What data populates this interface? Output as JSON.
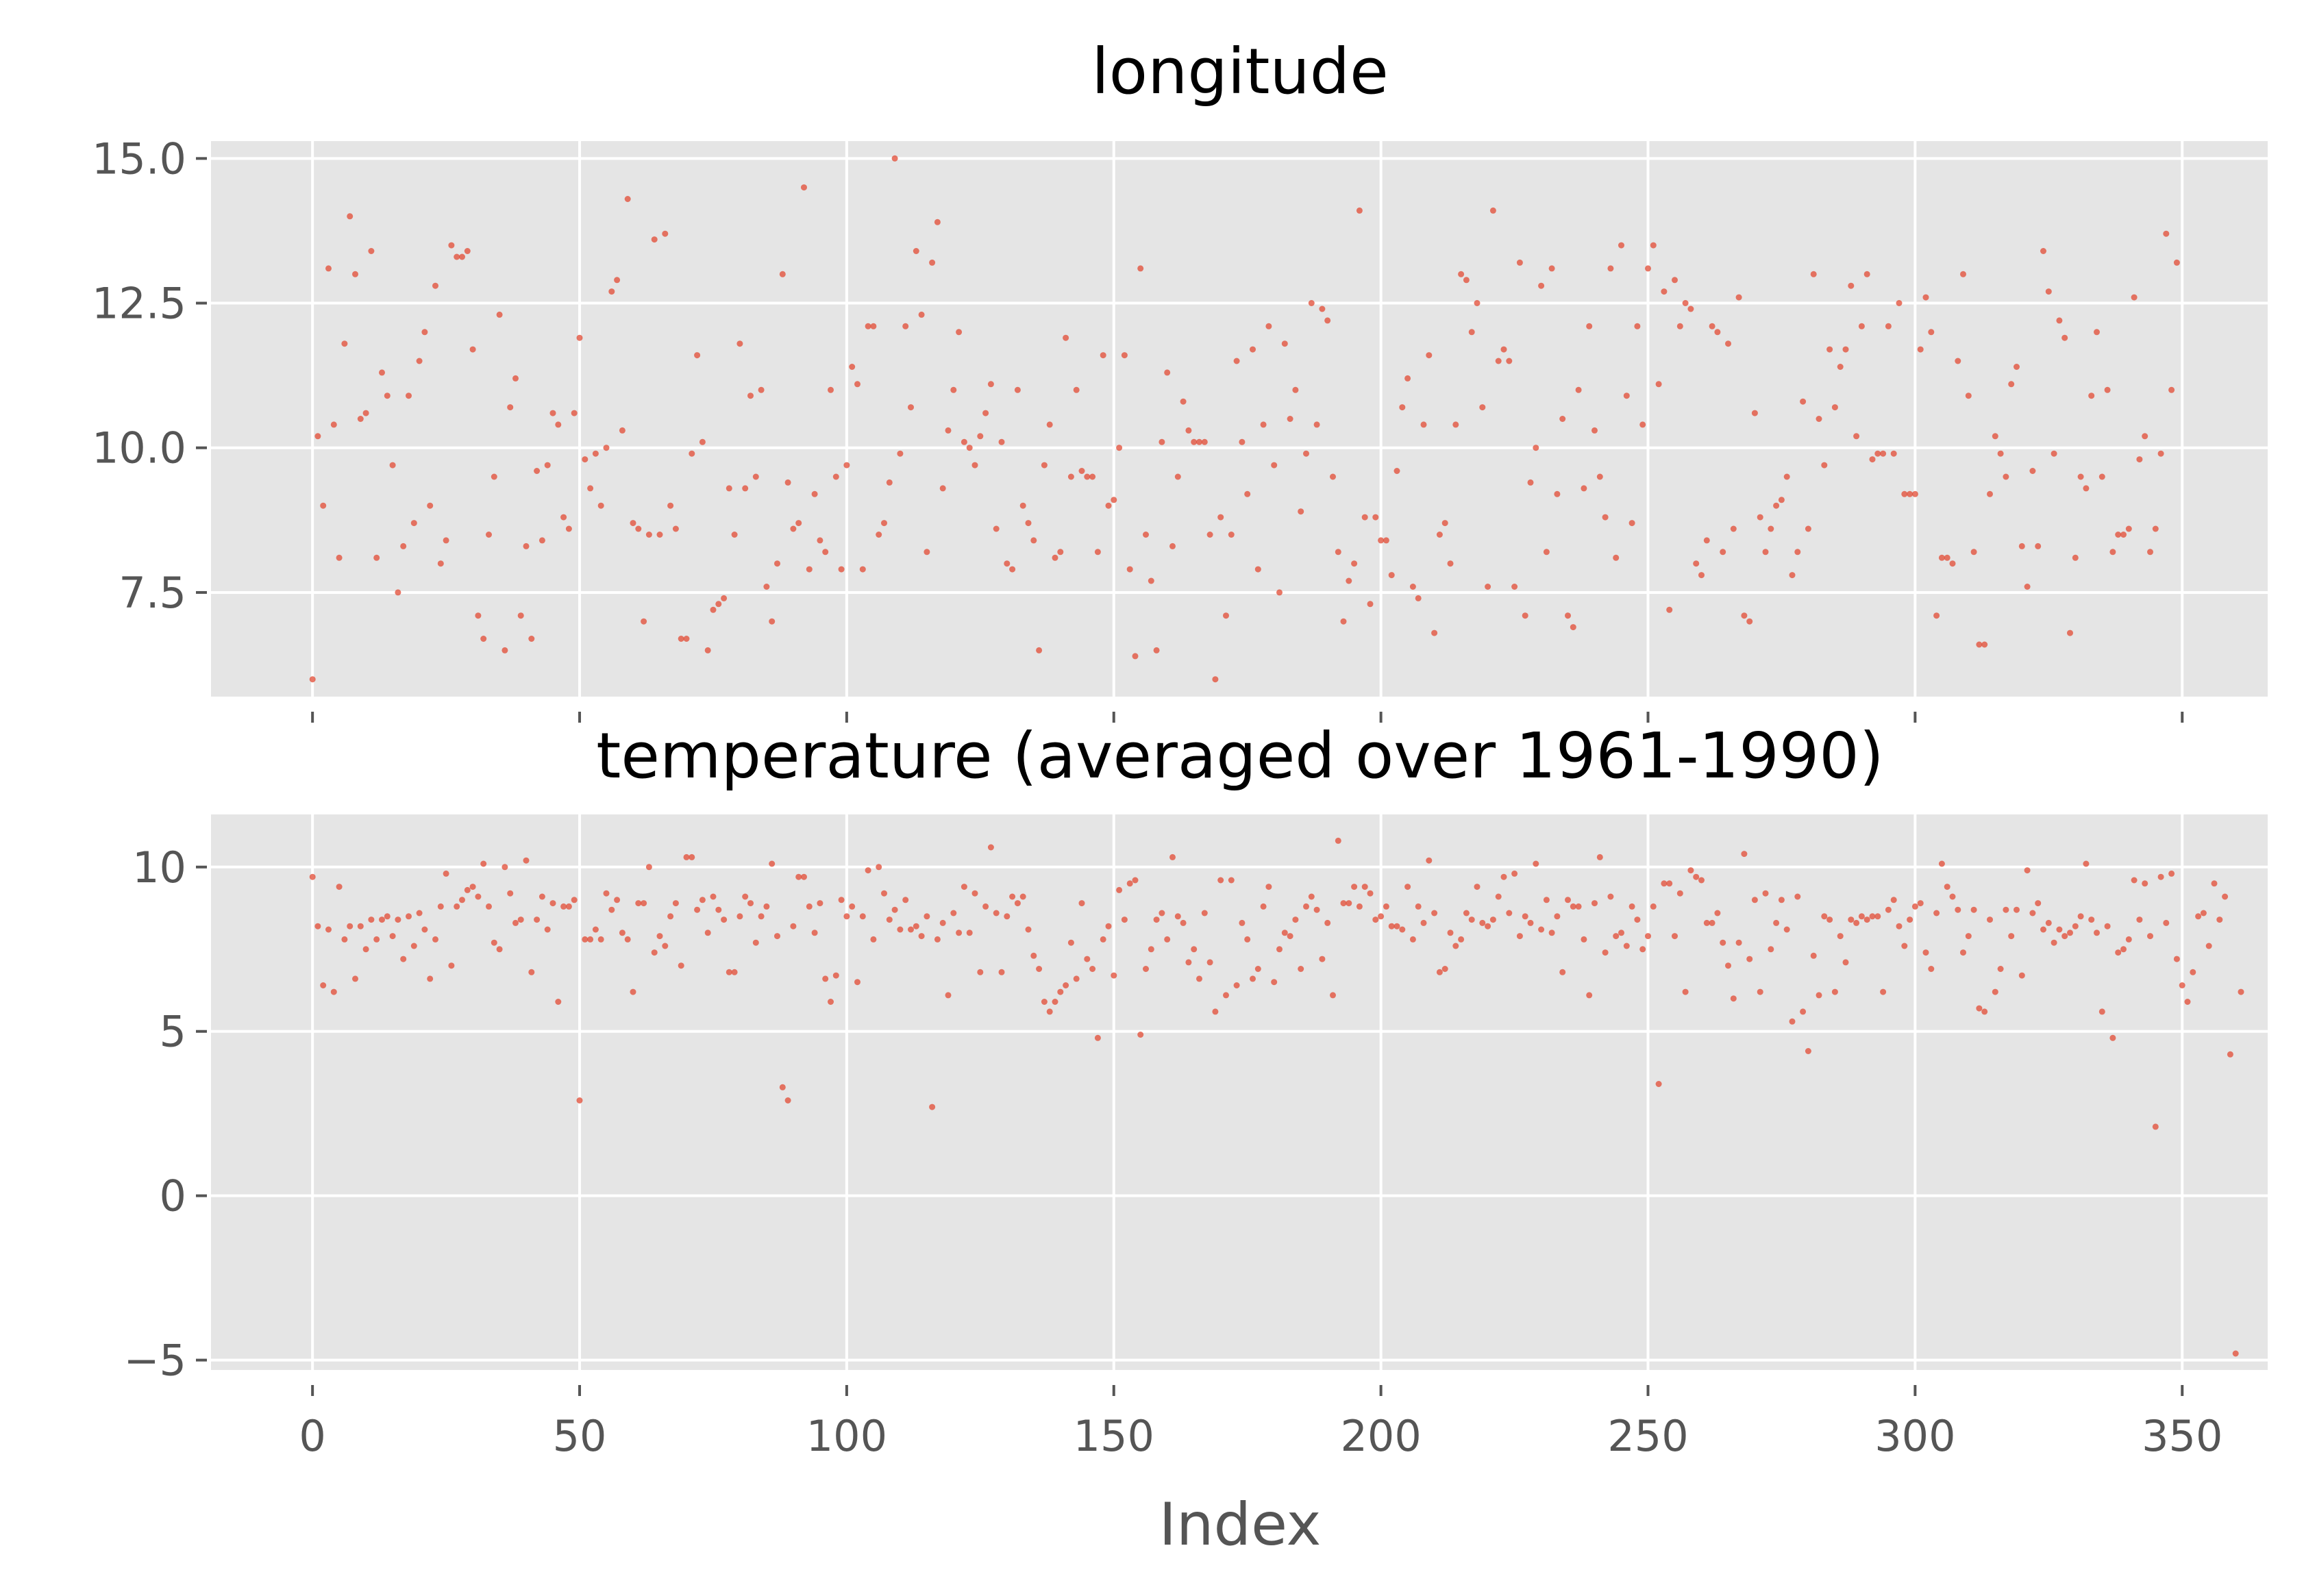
{
  "chart_data": [
    {
      "type": "scatter",
      "title": "longitude",
      "xlabel": "",
      "ylabel": "",
      "xlim": [
        -19,
        366
      ],
      "ylim": [
        5.7,
        15.3
      ],
      "yticks": [
        7.5,
        10.0,
        12.5,
        15.0
      ],
      "ytick_labels": [
        "7.5",
        "10.0",
        "12.5",
        "15.0"
      ],
      "xticks": [
        0,
        50,
        100,
        150,
        200,
        250,
        300,
        350
      ],
      "xtick_labels_visible": false,
      "grid": true,
      "marker_color": "#E24A33",
      "background": "#E5E5E5",
      "x_start": 0,
      "values": [
        6.0,
        10.2,
        9.0,
        13.1,
        10.4,
        8.1,
        11.8,
        14.0,
        13.0,
        10.5,
        10.6,
        13.4,
        8.1,
        11.3,
        10.9,
        9.7,
        7.5,
        8.3,
        10.9,
        8.7,
        11.5,
        12.0,
        9.0,
        12.8,
        8.0,
        8.4,
        13.5,
        13.3,
        13.3,
        13.4,
        11.7,
        7.1,
        6.7,
        8.5,
        9.5,
        12.3,
        6.5,
        10.7,
        11.2,
        7.1,
        8.3,
        6.7,
        9.6,
        8.4,
        9.7,
        10.6,
        10.4,
        8.8,
        8.6,
        10.6,
        11.9,
        9.8,
        9.3,
        9.9,
        9.0,
        10.0,
        12.7,
        12.9,
        10.3,
        14.3,
        8.7,
        8.6,
        7.0,
        8.5,
        13.6,
        8.5,
        13.7,
        9.0,
        8.6,
        6.7,
        6.7,
        9.9,
        11.6,
        10.1,
        6.5,
        7.2,
        7.3,
        7.4,
        9.3,
        8.5,
        11.8,
        9.3,
        10.9,
        9.5,
        11.0,
        7.6,
        7.0,
        8.0,
        13.0,
        9.4,
        8.6,
        8.7,
        14.5,
        7.9,
        9.2,
        8.4,
        8.2,
        11.0,
        9.5,
        7.9,
        9.7,
        11.4,
        11.1,
        7.9,
        12.1,
        12.1,
        8.5,
        8.7,
        9.4,
        15.0,
        9.9,
        12.1,
        10.7,
        13.4,
        12.3,
        8.2,
        13.2,
        13.9,
        9.3,
        10.3,
        11.0,
        12.0,
        10.1,
        10.0,
        9.7,
        10.2,
        10.6,
        11.1,
        8.6,
        10.1,
        8.0,
        7.9,
        11.0,
        9.0,
        8.7,
        8.4,
        6.5,
        9.7,
        10.4,
        8.1,
        8.2,
        11.9,
        9.5,
        11.0,
        9.6,
        9.5,
        9.5,
        8.2,
        11.6,
        9.0,
        9.1,
        10.0,
        11.6,
        7.9,
        6.4,
        13.1,
        8.5,
        7.7,
        6.5,
        10.1,
        11.3,
        8.3,
        9.5,
        10.8,
        10.3,
        10.1,
        10.1,
        10.1,
        8.5,
        6.0,
        8.8,
        7.1,
        8.5,
        11.5,
        10.1,
        9.2,
        11.7,
        7.9,
        10.4,
        12.1,
        9.7,
        7.5,
        11.8,
        10.5,
        11.0,
        8.9,
        9.9,
        12.5,
        10.4,
        12.4,
        12.2,
        9.5,
        8.2,
        7.0,
        7.7,
        8.0,
        14.1,
        8.8,
        7.3,
        8.8,
        8.4,
        8.4,
        7.8,
        9.6,
        10.7,
        11.2,
        7.6,
        7.4,
        10.4,
        11.6,
        6.8,
        8.5,
        8.7,
        8.0,
        10.4,
        13.0,
        12.9,
        12.0,
        12.5,
        10.7,
        7.6,
        14.1,
        11.5,
        11.7,
        11.5,
        7.6,
        13.2,
        7.1,
        9.4,
        10.0,
        12.8,
        8.2,
        13.1,
        9.2,
        10.5,
        7.1,
        6.9,
        11.0,
        9.3,
        12.1,
        10.3,
        9.5,
        8.8,
        13.1,
        8.1,
        13.5,
        10.9,
        8.7,
        12.1,
        10.4,
        13.1,
        13.5,
        11.1,
        12.7,
        7.2,
        12.9,
        12.1,
        12.5,
        12.4,
        8.0,
        7.8,
        8.4,
        12.1,
        12.0,
        8.2,
        11.8,
        8.6,
        12.6,
        7.1,
        7.0,
        10.6,
        8.8,
        8.2,
        8.6,
        9.0,
        9.1,
        9.5,
        7.8,
        8.2,
        10.8,
        8.6,
        13.0,
        10.5,
        9.7,
        11.7,
        10.7,
        11.4,
        11.7,
        12.8,
        10.2,
        12.1,
        13.0,
        9.8,
        9.9,
        9.9,
        12.1,
        9.9,
        12.5,
        9.2,
        9.2,
        9.2,
        11.7,
        12.6,
        12.0,
        7.1,
        8.1,
        8.1,
        8.0,
        11.5,
        13.0,
        10.9,
        8.2,
        6.6,
        6.6,
        9.2,
        10.2,
        9.9,
        9.5,
        11.1,
        11.4,
        8.3,
        7.6,
        9.6,
        8.3,
        13.4,
        12.7,
        9.9,
        12.2,
        11.9,
        6.8,
        8.1,
        9.5,
        9.3,
        10.9,
        12.0,
        9.5,
        11.0,
        8.2,
        8.5,
        8.5,
        8.6,
        12.6,
        9.8,
        10.2,
        8.2,
        8.6,
        9.9,
        13.7,
        11.0,
        13.2
      ]
    },
    {
      "type": "scatter",
      "title": "temperature (averaged over 1961-1990)",
      "xlabel": "Index",
      "ylabel": "",
      "xlim": [
        -19,
        366
      ],
      "ylim": [
        -5.3,
        11.6
      ],
      "yticks": [
        -5,
        0,
        5,
        10
      ],
      "ytick_labels": [
        "−5",
        "0",
        "5",
        "10"
      ],
      "xticks": [
        0,
        50,
        100,
        150,
        200,
        250,
        300,
        350
      ],
      "xtick_labels": [
        "0",
        "50",
        "100",
        "150",
        "200",
        "250",
        "300",
        "350"
      ],
      "grid": true,
      "marker_color": "#E24A33",
      "background": "#E5E5E5",
      "x_start": 0,
      "values": [
        9.7,
        8.2,
        6.4,
        8.1,
        6.2,
        9.4,
        7.8,
        8.2,
        6.6,
        8.2,
        7.5,
        8.4,
        7.8,
        8.4,
        8.5,
        7.9,
        8.4,
        7.2,
        8.5,
        7.6,
        8.6,
        8.1,
        6.6,
        7.8,
        8.8,
        9.8,
        7.0,
        8.8,
        9.0,
        9.3,
        9.4,
        9.1,
        10.1,
        8.8,
        7.7,
        7.5,
        10.0,
        9.2,
        8.3,
        8.4,
        10.2,
        6.8,
        8.4,
        9.1,
        8.1,
        8.9,
        5.9,
        8.8,
        8.8,
        9.0,
        2.9,
        7.8,
        7.8,
        8.1,
        7.8,
        9.2,
        8.7,
        9.0,
        8.0,
        7.8,
        6.2,
        8.9,
        8.9,
        10.0,
        7.4,
        7.9,
        7.6,
        8.5,
        8.9,
        7.0,
        10.3,
        10.3,
        8.7,
        9.0,
        8.0,
        9.1,
        8.7,
        8.4,
        6.8,
        6.8,
        8.5,
        9.1,
        8.9,
        7.7,
        8.5,
        8.8,
        10.1,
        7.9,
        3.3,
        2.9,
        8.2,
        9.7,
        9.7,
        8.8,
        8.0,
        8.9,
        6.6,
        5.9,
        6.7,
        9.0,
        8.5,
        8.8,
        6.5,
        8.5,
        9.9,
        7.8,
        10.0,
        9.2,
        8.4,
        8.7,
        8.1,
        9.0,
        8.1,
        8.2,
        7.9,
        8.5,
        2.7,
        7.8,
        8.3,
        6.1,
        8.6,
        8.0,
        9.4,
        8.0,
        9.2,
        6.8,
        8.8,
        10.6,
        8.6,
        6.8,
        8.5,
        9.1,
        8.9,
        9.1,
        8.1,
        7.3,
        6.9,
        5.9,
        5.6,
        5.9,
        6.2,
        6.4,
        7.7,
        6.6,
        8.9,
        7.2,
        6.9,
        4.8,
        7.8,
        8.2,
        6.7,
        9.3,
        8.4,
        9.5,
        9.6,
        4.9,
        6.9,
        7.5,
        8.4,
        8.6,
        7.8,
        10.3,
        8.5,
        8.3,
        7.1,
        7.5,
        6.6,
        8.6,
        7.1,
        5.6,
        9.6,
        6.1,
        9.6,
        6.4,
        8.3,
        7.8,
        6.6,
        6.9,
        8.8,
        9.4,
        6.5,
        7.5,
        8.0,
        7.9,
        8.4,
        6.9,
        8.8,
        9.1,
        8.7,
        7.2,
        8.3,
        6.1,
        10.8,
        8.9,
        8.9,
        9.4,
        8.8,
        9.4,
        9.2,
        8.4,
        8.5,
        8.8,
        8.2,
        8.2,
        8.1,
        9.4,
        7.8,
        8.8,
        8.3,
        10.2,
        8.6,
        6.8,
        6.9,
        8.0,
        7.6,
        7.8,
        8.6,
        8.4,
        9.4,
        8.3,
        8.2,
        8.4,
        9.1,
        9.7,
        8.6,
        9.8,
        7.9,
        8.5,
        8.3,
        10.1,
        8.1,
        9.0,
        8.0,
        8.5,
        6.8,
        9.0,
        8.8,
        8.8,
        7.8,
        6.1,
        8.9,
        10.3,
        7.4,
        9.1,
        7.9,
        8.0,
        7.6,
        8.8,
        8.4,
        7.5,
        7.9,
        8.8,
        3.4,
        9.5,
        9.5,
        7.9,
        9.2,
        6.2,
        9.9,
        9.7,
        9.6,
        8.3,
        8.3,
        8.6,
        7.7,
        7.0,
        6.0,
        7.7,
        10.4,
        7.2,
        9.0,
        6.2,
        9.2,
        7.5,
        8.3,
        9.0,
        8.1,
        5.3,
        9.1,
        5.6,
        4.4,
        7.3,
        6.1,
        8.5,
        8.4,
        6.2,
        7.9,
        7.1,
        8.4,
        8.3,
        8.5,
        8.4,
        8.5,
        8.5,
        6.2,
        8.7,
        9.0,
        8.2,
        7.6,
        8.4,
        8.8,
        8.9,
        7.4,
        6.9,
        8.6,
        10.1,
        9.4,
        9.1,
        8.7,
        7.4,
        7.9,
        8.7,
        5.7,
        5.6,
        8.4,
        6.2,
        6.9,
        8.7,
        7.9,
        8.7,
        6.7,
        9.9,
        8.6,
        8.9,
        8.1,
        8.3,
        7.7,
        8.1,
        7.9,
        8.0,
        8.2,
        8.5,
        10.1,
        8.4,
        8.0,
        5.6,
        8.2,
        4.8,
        7.4,
        7.5,
        7.8,
        9.6,
        8.4,
        9.5,
        7.9,
        2.1,
        9.7,
        8.3,
        9.8,
        7.2,
        6.4,
        5.9,
        6.8,
        8.5,
        8.6,
        7.6,
        9.5,
        8.4,
        9.1,
        4.3,
        -4.8,
        6.2
      ]
    }
  ]
}
